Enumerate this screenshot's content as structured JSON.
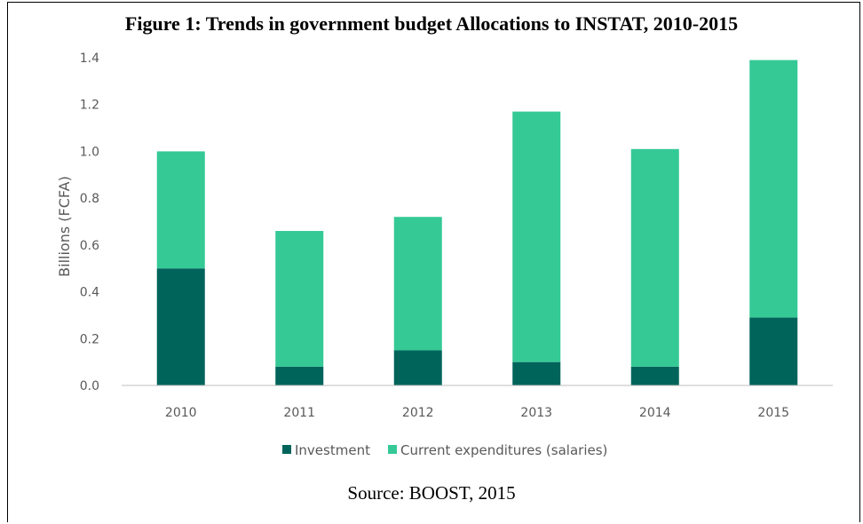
{
  "figure_title": "Figure 1: Trends in government budget Allocations to INSTAT, 2010-2015",
  "source_note": "Source: BOOST, 2015",
  "colors": {
    "investment": "#00645a",
    "current": "#35c996",
    "grid": "#e0e0e0",
    "axis": "#bfbfbf"
  },
  "chart_data": {
    "type": "bar",
    "stacked": true,
    "title": "Figure 1: Trends in government budget Allocations to INSTAT, 2010-2015",
    "xlabel": "",
    "ylabel": "Billions (FCFA)",
    "ylim": [
      0,
      1.4
    ],
    "yticks": [
      "0.0",
      "0.2",
      "0.4",
      "0.6",
      "0.8",
      "1.0",
      "1.2",
      "1.4"
    ],
    "grid": false,
    "legend_position": "bottom",
    "categories": [
      "2010",
      "2011",
      "2012",
      "2013",
      "2014",
      "2015"
    ],
    "series": [
      {
        "name": "Investment",
        "values": [
          0.5,
          0.08,
          0.15,
          0.1,
          0.08,
          0.29
        ]
      },
      {
        "name": "Current expenditures (salaries)",
        "values": [
          0.5,
          0.58,
          0.57,
          1.07,
          0.93,
          1.1
        ]
      }
    ]
  }
}
